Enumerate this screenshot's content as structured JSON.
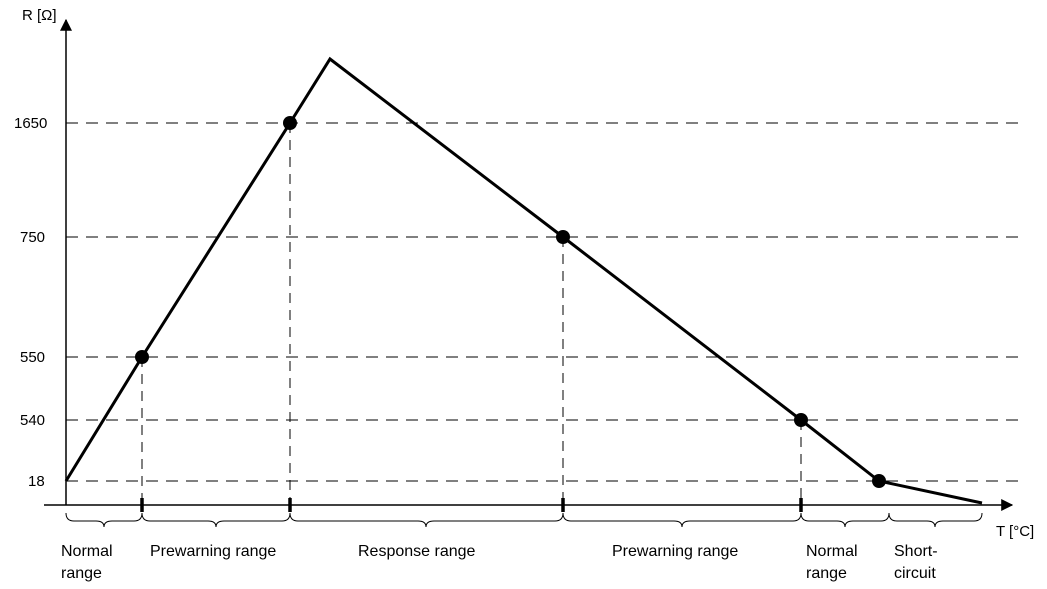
{
  "diagram": {
    "y_axis_label": "R [Ω]",
    "x_axis_label": "T [°C]",
    "y_ticks": [
      "1650",
      "750",
      "550",
      "540",
      "18"
    ],
    "ranges": [
      {
        "line1": "Normal",
        "line2": "range"
      },
      {
        "line1": "Prewarning range",
        "line2": ""
      },
      {
        "line1": "Response range",
        "line2": ""
      },
      {
        "line1": "Prewarning range",
        "line2": ""
      },
      {
        "line1": "Normal",
        "line2": "range"
      },
      {
        "line1": "Short-",
        "line2": "circuit"
      }
    ]
  }
}
